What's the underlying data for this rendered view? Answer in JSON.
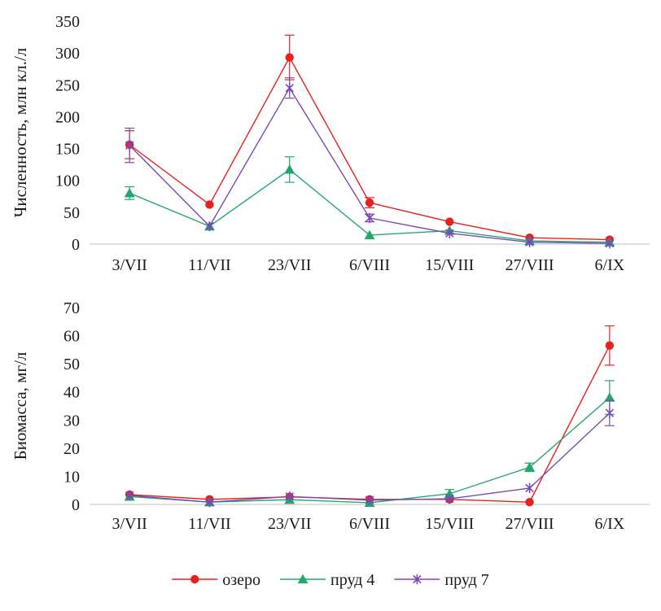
{
  "chart_data": [
    {
      "type": "line",
      "categories": [
        "3/VII",
        "11/VII",
        "23/VII",
        "6/VIII",
        "15/VIII",
        "27/VIII",
        "6/IX"
      ],
      "ylabel": "Численность, млн кл./л",
      "ylim": [
        0,
        350
      ],
      "yticks": [
        0,
        50,
        100,
        150,
        200,
        250,
        300,
        350
      ],
      "grid": false,
      "series": [
        {
          "name": "озеро",
          "color": "#e8201e",
          "marker": "circle",
          "values": [
            156,
            62,
            293,
            65,
            35,
            10,
            7
          ],
          "errors": [
            22,
            0,
            35,
            8,
            0,
            0,
            0
          ]
        },
        {
          "name": "пруд 4",
          "color": "#22a86c",
          "marker": "triangle",
          "values": [
            80,
            28,
            117,
            14,
            21,
            5,
            3
          ],
          "errors": [
            10,
            0,
            20,
            0,
            0,
            0,
            0
          ]
        },
        {
          "name": "пруд 7",
          "color": "#7b48b6",
          "marker": "star",
          "values": [
            155,
            28,
            245,
            41,
            17,
            3,
            1
          ],
          "errors": [
            27,
            0,
            16,
            6,
            0,
            0,
            0
          ]
        }
      ]
    },
    {
      "type": "line",
      "categories": [
        "3/VII",
        "11/VII",
        "23/VII",
        "6/VIII",
        "15/VIII",
        "27/VIII",
        "6/IX"
      ],
      "ylabel": "Биомасса, мг/л",
      "ylim": [
        0,
        70
      ],
      "yticks": [
        0,
        10,
        20,
        30,
        40,
        50,
        60,
        70
      ],
      "grid": false,
      "series": [
        {
          "name": "озеро",
          "color": "#e8201e",
          "marker": "circle",
          "values": [
            3.5,
            1.8,
            2.7,
            1.8,
            1.8,
            0.8,
            56.5
          ],
          "errors": [
            0,
            0,
            0,
            0,
            0,
            0,
            7
          ]
        },
        {
          "name": "пруд 4",
          "color": "#22a86c",
          "marker": "triangle",
          "values": [
            2.8,
            0.8,
            1.7,
            0.6,
            3.8,
            13.2,
            38.0
          ],
          "errors": [
            0,
            0,
            0,
            0,
            1.5,
            1.5,
            6
          ]
        },
        {
          "name": "пруд 7",
          "color": "#7b48b6",
          "marker": "star",
          "values": [
            3.2,
            0.8,
            2.8,
            1.5,
            2.0,
            5.8,
            32.5
          ],
          "errors": [
            0,
            0,
            0,
            0,
            0,
            0,
            4.5
          ]
        }
      ]
    }
  ],
  "legend": {
    "placement": "bottom",
    "items": [
      "озеро",
      "пруд 4",
      "пруд 7"
    ]
  }
}
